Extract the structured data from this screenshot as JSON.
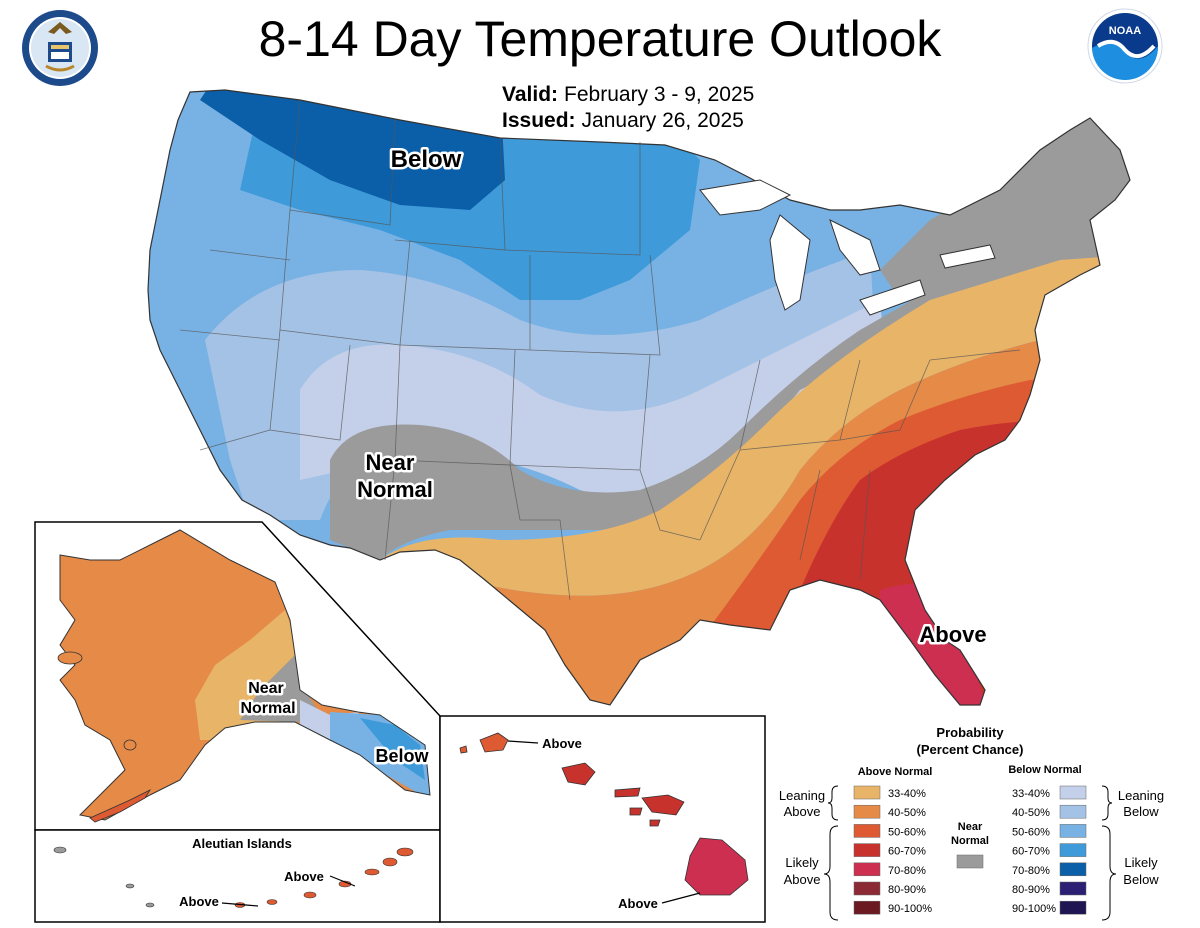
{
  "header": {
    "title": "8-14 Day Temperature Outlook",
    "valid_label": "Valid:",
    "valid_value": "February 3 - 9, 2025",
    "issued_label": "Issued:",
    "issued_value": "January 26, 2025"
  },
  "logos": {
    "left_seal": "department-of-commerce-seal",
    "right_logo": "noaa-logo",
    "noaa_text": "NOAA"
  },
  "map_labels": {
    "conus_below": "Below",
    "conus_near": "Near",
    "conus_normal": "Normal",
    "conus_above": "Above",
    "alaska_near": "Near",
    "alaska_normal": "Normal",
    "alaska_below": "Below",
    "aleutian_title": "Aleutian Islands",
    "aleutian_above_1": "Above",
    "aleutian_above_2": "Above",
    "hawaii_above_1": "Above",
    "hawaii_above_2": "Above"
  },
  "legend": {
    "title_line1": "Probability",
    "title_line2": "(Percent Chance)",
    "above_header": "Above Normal",
    "below_header": "Below Normal",
    "near_header_1": "Near",
    "near_header_2": "Normal",
    "leaning_above_1": "Leaning",
    "leaning_above_2": "Above",
    "likely_above_1": "Likely",
    "likely_above_2": "Above",
    "leaning_below_1": "Leaning",
    "leaning_below_2": "Below",
    "likely_below_1": "Likely",
    "likely_below_2": "Below",
    "bins": [
      "33-40%",
      "40-50%",
      "50-60%",
      "60-70%",
      "70-80%",
      "80-90%",
      "90-100%"
    ],
    "above_colors": [
      "#e8b468",
      "#e58a47",
      "#dd5a32",
      "#c8322d",
      "#cc2f4f",
      "#8b2a34",
      "#6b1a22"
    ],
    "below_colors": [
      "#c4d0ea",
      "#a4c2e6",
      "#78b2e4",
      "#3e9ad8",
      "#0b5ea8",
      "#2a1f72",
      "#1f1552"
    ],
    "near_color": "#9b9b9b"
  },
  "colors": {
    "above_33_40": "#e8b468",
    "above_40_50": "#e58a47",
    "above_50_60": "#dd5a32",
    "above_60_70": "#c8322d",
    "above_70_80": "#cc2f4f",
    "near_normal": "#9b9b9b",
    "below_33_40": "#c4d0ea",
    "below_40_50": "#a4c2e6",
    "below_50_60": "#78b2e4",
    "below_60_70": "#3e9ad8",
    "below_70_80": "#0b5ea8"
  }
}
